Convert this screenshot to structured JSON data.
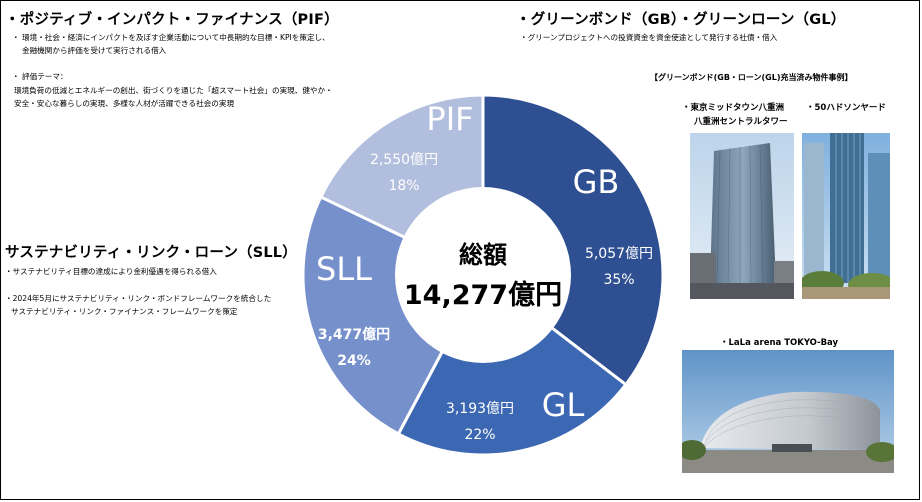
{
  "left": {
    "pif": {
      "title": "・ポジティブ・インパクト・ファイナンス（PIF）",
      "desc_line1": "・ 環境・社会・経済にインパクトを及ぼす企業活動について中長期的な目標・KPIを策定し、",
      "desc_line2": "金融機関から評価を受けて実行される借入",
      "theme_label": "・ 評価テーマ：",
      "theme_line1": "環境負荷の低減とエネルギーの創出、街づくりを通じた「超スマート社会」の実現、健やか・",
      "theme_line2": "安全・安心な暮らしの実現、多様な人材が活躍できる社会の実現"
    },
    "sll": {
      "title": "サステナビリティ・リンク・ローン（SLL）",
      "desc": "・サステナビリティ目標の達成により金利優遇を得られる借入",
      "note_line1": "・2024年5月にサステナビリティ・リンク・ボンドフレームワークを統合した",
      "note_line2": "サステナビリティ・リンク・ファイナンス・フレームワークを策定"
    }
  },
  "right": {
    "green": {
      "title": "・グリーンボンド（GB）・グリーンローン（GL）",
      "desc": "・グリーンプロジェクトへの投資資金を資金使途として発行する社債・借入"
    },
    "examples_title": "【グリーンボンド(GB・ローン(GL)充当済み物件事例】",
    "photo1_caption_line1": "・東京ミッドタウン八重洲",
    "photo1_caption_line2": "八重洲セントラルタワー",
    "photo2_caption": "・50ハドソンヤード",
    "photo3_caption": "・LaLa arena TOKYO-Bay"
  },
  "colors": {
    "GB": "#2e4f92",
    "GL": "#3c67b2",
    "SLL": "#7690cc",
    "PIF": "#b2bedd"
  },
  "chart_data": {
    "type": "pie",
    "style": "donut",
    "center_label": "総額",
    "center_value": "14,277億円",
    "total": 14277,
    "unit": "億円",
    "slices": [
      {
        "key": "GB",
        "label": "GB",
        "value": 5057,
        "value_text": "5,057億円",
        "percent_text": "35%"
      },
      {
        "key": "GL",
        "label": "GL",
        "value": 3193,
        "value_text": "3,193億円",
        "percent_text": "22%"
      },
      {
        "key": "SLL",
        "label": "SLL",
        "value": 3477,
        "value_text": "3,477億円",
        "percent_text": "24%"
      },
      {
        "key": "PIF",
        "label": "PIF",
        "value": 2550,
        "value_text": "2,550億円",
        "percent_text": "18%"
      }
    ]
  }
}
